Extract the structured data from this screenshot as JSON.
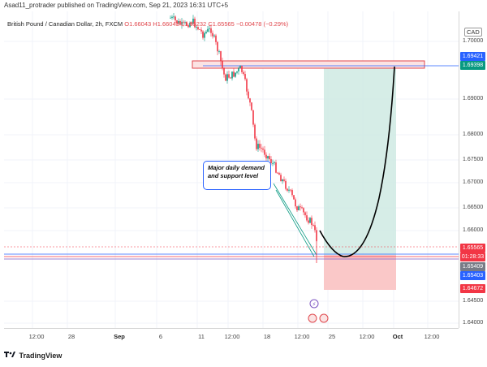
{
  "header": {
    "publish_text": "Asad11_protrader published on TradingView.com, Sep 21, 2023 16:31 UTC+5"
  },
  "legend": {
    "symbol": "British Pound / Canadian Dollar, 2h, FXCM",
    "open": "O1.66043",
    "high": "H1.66043",
    "low": "L1.65232",
    "close": "C1.65565",
    "change": "−0.00478 (−0.29%)"
  },
  "price_axis": {
    "currency": "CAD",
    "ticks": [
      "1.70000",
      "1.69000",
      "1.68000",
      "1.67500",
      "1.67000",
      "1.66500",
      "1.66000",
      "1.64500",
      "1.64000"
    ],
    "badges": [
      {
        "label": "1.69421",
        "color": "#2962ff"
      },
      {
        "label": "1.69398",
        "color": "#089981"
      },
      {
        "label": "1.65565",
        "color": "#f23645"
      },
      {
        "label": "01:28:33",
        "color": "#f23645"
      },
      {
        "label": "1.65409",
        "color": "#787b86"
      },
      {
        "label": "1.65403",
        "color": "#2962ff"
      },
      {
        "label": "1.64672",
        "color": "#f23645"
      }
    ]
  },
  "time_axis": {
    "ticks": [
      {
        "label": "12:00",
        "bold": false
      },
      {
        "label": "28",
        "bold": false
      },
      {
        "label": "Sep",
        "bold": true
      },
      {
        "label": "6",
        "bold": false
      },
      {
        "label": "11",
        "bold": false
      },
      {
        "label": "12:00",
        "bold": false
      },
      {
        "label": "18",
        "bold": false
      },
      {
        "label": "12:00",
        "bold": false
      },
      {
        "label": "25",
        "bold": false
      },
      {
        "label": "12:00",
        "bold": false
      },
      {
        "label": "Oct",
        "bold": true
      },
      {
        "label": "12:00",
        "bold": false
      }
    ]
  },
  "annotation": {
    "text": "Major daily demand and support level"
  },
  "footer": {
    "brand": "TradingView"
  },
  "colors": {
    "bull": "#089981",
    "bear": "#f23645",
    "target_zone": "#cfeae3",
    "stop_zone": "#f9c2c2",
    "demand_line": "#2962ff"
  },
  "chart_data": {
    "type": "candlestick",
    "symbol": "GBPCAD",
    "timeframe": "2h",
    "y_range": [
      1.638,
      1.703
    ],
    "supply_zone": [
      1.6935,
      1.6948
    ],
    "target_level": 1.69398,
    "entry_level": 1.65409,
    "stop_level": 1.64672,
    "current_price": 1.65565
  }
}
